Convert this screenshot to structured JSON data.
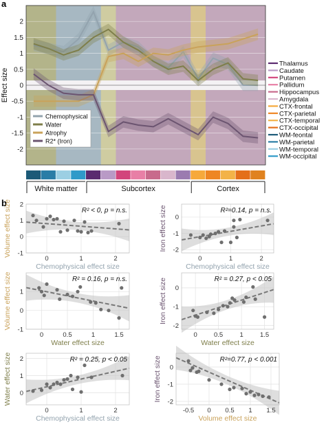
{
  "panels": {
    "a": "a",
    "b": "b"
  },
  "chart_data": [
    {
      "type": "line",
      "panel": "a",
      "ylabel": "Effect size",
      "ylim": [
        -2.5,
        2.5
      ],
      "yticks": [
        -2,
        -1.5,
        -1,
        -0.5,
        0,
        0.5,
        1,
        1.5,
        2
      ],
      "grid": true,
      "legend_position": "lower-left",
      "x": [
        1,
        2,
        3,
        4,
        5,
        6,
        7,
        8,
        9,
        10,
        11,
        12,
        13,
        14,
        15,
        16
      ],
      "series": [
        {
          "name": "Chemophysical",
          "color": "#93a3ae",
          "values": [
            1.25,
            1.15,
            1.05,
            1.45,
            2.3,
            1.1,
            1.35,
            1.2,
            0.75,
            0.55,
            1.05,
            0.2,
            0.85,
            0.65,
            0.0,
            0.0
          ]
        },
        {
          "name": "Water",
          "color": "#7e7e4a",
          "values": [
            1.3,
            1.15,
            0.95,
            1.1,
            1.5,
            1.75,
            1.35,
            1.1,
            0.75,
            0.5,
            0.6,
            0.15,
            0.5,
            0.7,
            0.2,
            0.15
          ]
        },
        {
          "name": "Atrophy",
          "color": "#c9a25a",
          "values": [
            -0.5,
            -0.5,
            -0.5,
            -0.5,
            -0.3,
            0.9,
            1.0,
            0.75,
            1.0,
            0.95,
            1.1,
            1.2,
            1.25,
            1.3,
            1.45,
            1.6
          ]
        },
        {
          "name": "R2* (Iron)",
          "color": "#6b5470",
          "values": [
            0.35,
            0.0,
            -0.25,
            -0.3,
            -0.3,
            -1.45,
            -1.15,
            -1.25,
            -1.3,
            -1.05,
            -1.3,
            -1.55,
            -1.0,
            -1.2,
            -1.6,
            -1.65
          ]
        }
      ],
      "region_groups": [
        {
          "label": "White matter",
          "columns": [
            1,
            4
          ]
        },
        {
          "label": "Subcortex",
          "columns": [
            5,
            11
          ]
        },
        {
          "label": "Cortex",
          "columns": [
            12,
            16
          ]
        }
      ],
      "regions": [
        {
          "name": "Thalamus",
          "color": "#5b2a6f"
        },
        {
          "name": "Caudate",
          "color": "#b99ac6"
        },
        {
          "name": "Putamen",
          "color": "#d2457c"
        },
        {
          "name": "Pallidum",
          "color": "#e87fa6"
        },
        {
          "name": "Hippocampus",
          "color": "#c86a8c"
        },
        {
          "name": "Amygdala",
          "color": "#d9b6cc"
        },
        {
          "name": "CTX-frontal",
          "color": "#f6a93b"
        },
        {
          "name": "CTX-parietal",
          "color": "#ee8623"
        },
        {
          "name": "CTX-temporal",
          "color": "#f3b348"
        },
        {
          "name": "CTX-occipital",
          "color": "#e46f1a"
        },
        {
          "name": "WM-feontal",
          "color": "#1c5a78"
        },
        {
          "name": "WM-parietal",
          "color": "#2a7da6"
        },
        {
          "name": "WM-temporal",
          "color": "#9ccfe3"
        },
        {
          "name": "WM-occipital",
          "color": "#2f9ac9"
        }
      ],
      "band_colors": [
        "#1c5a78",
        "#2a7da6",
        "#9ccfe3",
        "#2f9ac9",
        "#5b2a6f",
        "#b99ac6",
        "#d2457c",
        "#e87fa6",
        "#c86a8c",
        "#d9b6cc",
        "#9b7bb0",
        "#f6a93b",
        "#ee8623",
        "#f3b348",
        "#e46f1a",
        "#e0821f"
      ]
    },
    {
      "type": "scatter",
      "panel": "b",
      "xlabel": "Chemophysical effect size",
      "ylabel": "Volume effect size",
      "xlabel_color": "#93a3ae",
      "ylabel_color": "#c9a25a",
      "xlim": [
        -0.6,
        2.4
      ],
      "ylim": [
        -1.0,
        2.0
      ],
      "xticks": [
        0,
        1,
        2
      ],
      "yticks": [
        -1,
        0,
        1,
        2
      ],
      "stat_text": "R² < 0, p = n.s.",
      "points": [
        [
          -0.4,
          1.3
        ],
        [
          -0.3,
          1.0
        ],
        [
          -0.1,
          0.6
        ],
        [
          0.0,
          1.1
        ],
        [
          0.1,
          1.25
        ],
        [
          0.2,
          1.05
        ],
        [
          0.3,
          1.1
        ],
        [
          0.4,
          0.3
        ],
        [
          0.5,
          0.95
        ],
        [
          0.6,
          0.4
        ],
        [
          0.8,
          1.0
        ],
        [
          0.9,
          0.35
        ],
        [
          1.0,
          0.3
        ],
        [
          1.1,
          0.9
        ],
        [
          1.2,
          0.25
        ],
        [
          1.3,
          0.35
        ],
        [
          2.1,
          0.8
        ]
      ],
      "fit": {
        "slope": -0.16,
        "intercept": 0.8
      }
    },
    {
      "type": "scatter",
      "panel": "b",
      "xlabel": "Chemophysical effect size",
      "ylabel": "Iron effect size",
      "xlabel_color": "#93a3ae",
      "ylabel_color": "#6b5470",
      "xlim": [
        -0.6,
        2.4
      ],
      "ylim": [
        -2.2,
        0.8
      ],
      "xticks": [
        0,
        1,
        2
      ],
      "yticks": [
        -2,
        -1,
        0
      ],
      "stat_text": "R²=0.14, p = n.s.",
      "points": [
        [
          -0.3,
          -1.1
        ],
        [
          0.0,
          -1.25
        ],
        [
          0.1,
          -1.1
        ],
        [
          0.2,
          -1.3
        ],
        [
          0.3,
          -1.2
        ],
        [
          0.35,
          -1.05
        ],
        [
          0.5,
          -1.0
        ],
        [
          0.6,
          -0.9
        ],
        [
          0.7,
          -1.55
        ],
        [
          0.8,
          -0.85
        ],
        [
          1.0,
          -1.55
        ],
        [
          1.1,
          -0.6
        ],
        [
          1.1,
          -0.2
        ],
        [
          1.3,
          -0.15
        ],
        [
          1.2,
          -1.25
        ],
        [
          2.2,
          -0.2
        ]
      ],
      "fit": {
        "slope": 0.33,
        "intercept": -1.2
      }
    },
    {
      "type": "scatter",
      "panel": "b",
      "xlabel": "Water effect size",
      "ylabel": "Volume effect size",
      "xlabel_color": "#7e7e4a",
      "ylabel_color": "#c9a25a",
      "xlim": [
        -0.3,
        1.7
      ],
      "ylim": [
        -1.0,
        2.0
      ],
      "xticks": [
        0,
        0.5,
        1,
        1.5
      ],
      "yticks": [
        -1,
        0,
        1
      ],
      "stat_text": "R² = 0.16, p = n.s.",
      "points": [
        [
          -0.05,
          1.2
        ],
        [
          0.0,
          1.0
        ],
        [
          0.05,
          0.8
        ],
        [
          0.1,
          1.4
        ],
        [
          0.3,
          1.1
        ],
        [
          0.35,
          0.6
        ],
        [
          0.5,
          0.85
        ],
        [
          0.6,
          0.75
        ],
        [
          0.7,
          1.0
        ],
        [
          0.75,
          1.25
        ],
        [
          0.95,
          0.45
        ],
        [
          1.05,
          0.4
        ],
        [
          1.15,
          0.05
        ],
        [
          1.3,
          0.0
        ],
        [
          1.5,
          -0.4
        ],
        [
          1.55,
          1.2
        ]
      ],
      "fit": {
        "slope": -0.55,
        "intercept": 1.05
      }
    },
    {
      "type": "scatter",
      "panel": "b",
      "xlabel": "Water effect size",
      "ylabel": "Iron effect size",
      "xlabel_color": "#7e7e4a",
      "ylabel_color": "#6b5470",
      "xlim": [
        -0.3,
        1.7
      ],
      "ylim": [
        -2.2,
        0.8
      ],
      "xticks": [
        0,
        0.5,
        1,
        1.5
      ],
      "yticks": [
        -2,
        -1,
        0
      ],
      "stat_text": "R² = 0.27, p < 0.05",
      "points": [
        [
          -0.05,
          -1.2
        ],
        [
          0.0,
          -1.5
        ],
        [
          0.05,
          -1.55
        ],
        [
          0.25,
          -1.3
        ],
        [
          0.4,
          -1.35
        ],
        [
          0.5,
          -1.15
        ],
        [
          0.6,
          -0.95
        ],
        [
          0.7,
          -1.0
        ],
        [
          0.75,
          -0.8
        ],
        [
          0.8,
          -0.55
        ],
        [
          0.85,
          -0.65
        ],
        [
          1.05,
          -0.75
        ],
        [
          1.1,
          -0.5
        ],
        [
          1.25,
          0.05
        ],
        [
          1.3,
          -0.6
        ],
        [
          1.5,
          -1.55
        ]
      ],
      "fit": {
        "slope": 0.8,
        "intercept": -1.45
      }
    },
    {
      "type": "scatter",
      "panel": "b",
      "xlabel": "Chemophysical effect size",
      "ylabel": "Water effect size",
      "xlabel_color": "#93a3ae",
      "ylabel_color": "#7e7e4a",
      "xlim": [
        -0.6,
        2.4
      ],
      "ylim": [
        -0.7,
        2.3
      ],
      "xticks": [
        0,
        1,
        2
      ],
      "yticks": [
        0,
        1,
        2
      ],
      "stat_text": "R² = 0.25, p < 0.05",
      "points": [
        [
          -0.4,
          0.1
        ],
        [
          -0.15,
          0.15
        ],
        [
          0.0,
          0.5
        ],
        [
          0.1,
          0.3
        ],
        [
          0.2,
          0.5
        ],
        [
          0.3,
          0.6
        ],
        [
          0.4,
          0.5
        ],
        [
          0.5,
          0.75
        ],
        [
          0.6,
          0.8
        ],
        [
          0.7,
          1.0
        ],
        [
          0.75,
          0.2
        ],
        [
          0.9,
          0.9
        ],
        [
          1.0,
          0.05
        ],
        [
          1.1,
          1.6
        ],
        [
          1.3,
          0.9
        ],
        [
          2.2,
          1.0
        ]
      ],
      "fit": {
        "slope": 0.45,
        "intercept": 0.35
      }
    },
    {
      "type": "scatter",
      "panel": "b",
      "xlabel": "Volume effect size",
      "ylabel": "Iron effect size",
      "xlabel_color": "#c9a25a",
      "ylabel_color": "#6b5470",
      "xlim": [
        -0.8,
        1.7
      ],
      "ylim": [
        -2.2,
        0.8
      ],
      "xticks": [
        -0.5,
        0,
        0.5,
        1,
        1.5
      ],
      "yticks": [
        -2,
        -1,
        0
      ],
      "stat_text": "R²=0.77, p < 0.001",
      "points": [
        [
          -0.5,
          0.35
        ],
        [
          -0.45,
          -0.2
        ],
        [
          -0.4,
          -0.05
        ],
        [
          -0.3,
          -0.3
        ],
        [
          -0.25,
          -0.25
        ],
        [
          0.0,
          -0.75
        ],
        [
          0.3,
          -1.0
        ],
        [
          0.5,
          -1.3
        ],
        [
          0.6,
          -1.2
        ],
        [
          0.8,
          -1.25
        ],
        [
          0.9,
          -1.55
        ],
        [
          1.0,
          -1.45
        ],
        [
          1.1,
          -1.65
        ],
        [
          1.2,
          -1.6
        ],
        [
          1.3,
          -1.7
        ],
        [
          1.45,
          -1.75
        ]
      ],
      "fit": {
        "slope": -1.05,
        "intercept": -0.3
      }
    }
  ]
}
